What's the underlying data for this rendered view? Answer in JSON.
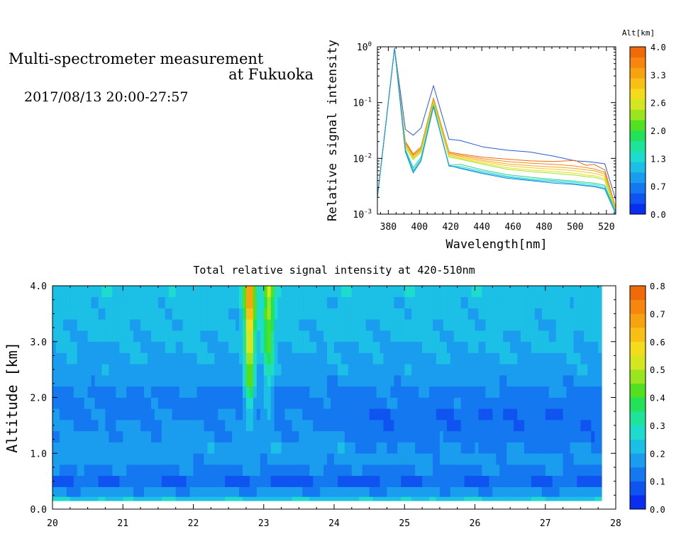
{
  "header": {
    "title_line1": "Multi-spectrometer measurement",
    "title_line2": "at Fukuoka",
    "datetime": "2017/08/13 20:00-27:57"
  },
  "chart_data": [
    {
      "type": "line",
      "title": "",
      "xlabel": "Wavelength[nm]",
      "ylabel": "Relative signal intensity",
      "y_scale": "log",
      "xlim": [
        373,
        526
      ],
      "ylim": [
        0.001,
        1
      ],
      "x_ticks": [
        "380",
        "400",
        "420",
        "440",
        "460",
        "480",
        "500",
        "520"
      ],
      "y_ticks": [
        "10^-3",
        "10^-2",
        "10^-1",
        "10^0"
      ],
      "grid": false,
      "x": [
        373,
        384,
        391,
        396,
        401,
        409,
        419,
        426,
        441,
        456,
        471,
        486,
        500,
        507,
        512,
        519,
        526
      ],
      "series": [
        {
          "alt_km": 0.15,
          "color": "#2a5ad8",
          "values": [
            0.002,
            0.95,
            0.033,
            0.026,
            0.035,
            0.2,
            0.022,
            0.021,
            0.016,
            0.014,
            0.013,
            0.011,
            0.009,
            0.0088,
            0.0085,
            0.008,
            0.0018
          ]
        },
        {
          "alt_km": 4.0,
          "color": "#f06a10",
          "values": [
            0.002,
            0.95,
            0.02,
            0.012,
            0.016,
            0.12,
            0.013,
            0.012,
            0.0105,
            0.0097,
            0.009,
            0.0088,
            0.0092,
            0.0075,
            0.0078,
            0.0062,
            0.0013
          ]
        },
        {
          "alt_km": 3.6,
          "color": "#f38a14",
          "values": [
            0.002,
            0.95,
            0.019,
            0.0115,
            0.015,
            0.115,
            0.0125,
            0.0115,
            0.0098,
            0.0088,
            0.0082,
            0.0078,
            0.0073,
            0.0068,
            0.0065,
            0.0056,
            0.0013
          ]
        },
        {
          "alt_km": 3.3,
          "color": "#f6a81a",
          "values": [
            0.002,
            0.95,
            0.018,
            0.011,
            0.0145,
            0.11,
            0.012,
            0.011,
            0.0092,
            0.008,
            0.0074,
            0.007,
            0.0066,
            0.0062,
            0.006,
            0.0052,
            0.0012
          ]
        },
        {
          "alt_km": 2.9,
          "color": "#f7c81e",
          "values": [
            0.002,
            0.95,
            0.0175,
            0.0105,
            0.014,
            0.105,
            0.0115,
            0.0105,
            0.0087,
            0.0074,
            0.0068,
            0.0064,
            0.006,
            0.0056,
            0.0054,
            0.0048,
            0.0012
          ]
        },
        {
          "alt_km": 2.6,
          "color": "#dfe021",
          "values": [
            0.002,
            0.95,
            0.017,
            0.01,
            0.0135,
            0.1,
            0.011,
            0.01,
            0.0082,
            0.0068,
            0.0062,
            0.0058,
            0.0054,
            0.005,
            0.0049,
            0.0044,
            0.0012
          ]
        },
        {
          "alt_km": 2.3,
          "color": "#a6e322",
          "values": [
            0.002,
            0.95,
            0.016,
            0.0095,
            0.013,
            0.097,
            0.0105,
            0.0097,
            0.0078,
            0.0064,
            0.0058,
            0.0054,
            0.005,
            0.0047,
            0.0046,
            0.0041,
            0.0011
          ]
        },
        {
          "alt_km": 1.3,
          "color": "#27d38c",
          "values": [
            0.002,
            0.95,
            0.0145,
            0.0068,
            0.0105,
            0.09,
            0.0075,
            0.0078,
            0.0062,
            0.0051,
            0.0046,
            0.0042,
            0.0039,
            0.0037,
            0.0036,
            0.0033,
            0.0011
          ]
        },
        {
          "alt_km": 1.0,
          "color": "#1ed7c8",
          "values": [
            0.002,
            0.95,
            0.014,
            0.0062,
            0.0098,
            0.088,
            0.0072,
            0.0072,
            0.0058,
            0.0048,
            0.0043,
            0.004,
            0.0037,
            0.0035,
            0.0034,
            0.0031,
            0.0011
          ]
        },
        {
          "alt_km": 0.7,
          "color": "#1bb8e4",
          "values": [
            0.002,
            0.95,
            0.0135,
            0.0058,
            0.0092,
            0.086,
            0.0073,
            0.0068,
            0.0055,
            0.0046,
            0.0041,
            0.0038,
            0.0035,
            0.0033,
            0.0032,
            0.0029,
            0.0011
          ]
        },
        {
          "alt_km": 0.4,
          "color": "#1b8ee4",
          "values": [
            0.002,
            0.95,
            0.013,
            0.0055,
            0.009,
            0.084,
            0.0075,
            0.0066,
            0.0053,
            0.0044,
            0.004,
            0.0036,
            0.0034,
            0.0032,
            0.0031,
            0.0028,
            0.001
          ]
        }
      ],
      "colorbar": {
        "title": "Alt[km]",
        "tick_labels": [
          "4.0",
          "3.3",
          "2.6",
          "2.0",
          "1.3",
          "0.7",
          "0.0"
        ],
        "colors": [
          "#0a2ef0",
          "#0f53f0",
          "#1478f0",
          "#1a9cef",
          "#1cbfe6",
          "#1ddccd",
          "#1fe39a",
          "#22e25a",
          "#52e021",
          "#9ae520",
          "#d4e61f",
          "#f3dc1c",
          "#f8bf14",
          "#f7a310",
          "#f6860e",
          "#f06a0a"
        ]
      }
    },
    {
      "type": "heatmap",
      "title": "Total relative signal intensity at 420-510nm",
      "xlabel": "",
      "ylabel": "Altitude [km]",
      "xlim": [
        20,
        28
      ],
      "ylim": [
        0,
        4
      ],
      "data_xlim": [
        20,
        27.8
      ],
      "data_ylim": [
        0.15,
        4.0
      ],
      "x_ticks": [
        "20",
        "21",
        "22",
        "23",
        "24",
        "25",
        "26",
        "27",
        "28"
      ],
      "y_ticks": [
        "0.0",
        "1.0",
        "2.0",
        "3.0",
        "4.0"
      ],
      "profile_altitudes_km": [
        0.15,
        0.3,
        0.5,
        0.7,
        0.9,
        1.1,
        1.3,
        1.5,
        1.7,
        1.9,
        2.1,
        2.3,
        2.5,
        2.7,
        2.9,
        3.1,
        3.3,
        3.5,
        3.7,
        3.9
      ],
      "background_profile": [
        0.24,
        0.16,
        0.1,
        0.14,
        0.17,
        0.18,
        0.16,
        0.15,
        0.14,
        0.13,
        0.14,
        0.17,
        0.18,
        0.19,
        0.2,
        0.21,
        0.21,
        0.22,
        0.22,
        0.23
      ],
      "plume_centers_hour": [
        22.8,
        23.07
      ],
      "plume_peak": [
        0.72,
        0.5
      ],
      "colorbar": {
        "title": "",
        "tick_labels": [
          "0.8",
          "0.7",
          "0.6",
          "0.5",
          "0.4",
          "0.3",
          "0.2",
          "0.1",
          "0.0"
        ],
        "vmin": 0,
        "vmax": 0.8,
        "colors": [
          "#0a2ef0",
          "#0f53f0",
          "#1478f0",
          "#1a9cef",
          "#1cbfe6",
          "#1ddccd",
          "#1fe39a",
          "#22e25a",
          "#52e021",
          "#9ae520",
          "#d4e61f",
          "#f3dc1c",
          "#f8bf14",
          "#f7a310",
          "#f6860e",
          "#f06a0a"
        ]
      }
    }
  ]
}
